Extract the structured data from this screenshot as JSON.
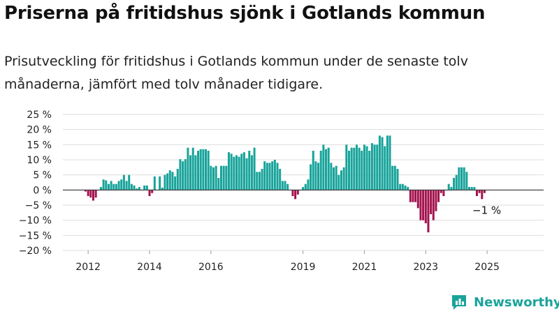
{
  "header": {
    "title": "Priserna på fritidshus sjönk i Gotlands kommun",
    "subtitle": "Prisutveckling för fritidshus i Gotlands kommun under de senaste tolv månaderna, jämfört med tolv månader tidigare."
  },
  "brand": {
    "name": "Newsworthy",
    "icon": "newsworthy-logo-icon"
  },
  "colors": {
    "positive": "#17a39a",
    "negative": "#a3124e",
    "grid": "#dddddd",
    "axis": "#333333"
  },
  "chart_data": {
    "type": "bar",
    "ylim": [
      -20,
      25
    ],
    "yticks": [
      "25 %",
      "20 %",
      "15 %",
      "10 %",
      "5 %",
      "0 %",
      "−5 %",
      "−10 %",
      "−15 %",
      "−20 %"
    ],
    "xticks": [
      "2012",
      "2014",
      "2016",
      "2019",
      "2021",
      "2023",
      "2025"
    ],
    "grid": true,
    "annotation": "−1 %",
    "x_start": "2011-12",
    "series": [
      {
        "values": [
          -0.5,
          -2,
          -2.5,
          -3.5,
          -2.5,
          0,
          1,
          3.5,
          3.2,
          2,
          3,
          2,
          2,
          3,
          3.5,
          5,
          3,
          5,
          2,
          1.5,
          0.5,
          1,
          0,
          1.5,
          1.5,
          -2,
          -1,
          4.5,
          0,
          4.5,
          0.8,
          5,
          5.5,
          6.5,
          6,
          4.5,
          7,
          10.2,
          9.5,
          10.2,
          14,
          11.5,
          14,
          11.5,
          13,
          13.5,
          13.5,
          13.5,
          13,
          8,
          7.5,
          8,
          4,
          8,
          8,
          8,
          12.5,
          12,
          11,
          11.5,
          11,
          12,
          12.5,
          10.5,
          13,
          11.5,
          14,
          6,
          6,
          7,
          9.5,
          9,
          9,
          9.5,
          10,
          9,
          7,
          3,
          3,
          2,
          0,
          -2,
          -3,
          -1.5,
          0,
          1,
          2,
          3.5,
          8.5,
          13,
          9.5,
          9,
          13,
          15,
          13.5,
          14,
          9,
          7.5,
          8,
          5,
          6.5,
          7.5,
          15,
          13,
          14,
          14,
          15,
          14,
          13,
          15,
          14.5,
          13,
          15.5,
          15,
          15,
          18,
          17.5,
          14.5,
          18,
          18,
          8,
          8,
          7,
          2,
          2,
          1.5,
          1,
          -4,
          -4,
          -4,
          -6,
          -10,
          -10,
          -11,
          -14,
          -8,
          -10,
          -7,
          -4,
          -1,
          -2,
          0,
          2,
          1,
          4,
          5,
          7.5,
          7.5,
          7.5,
          6,
          1,
          1,
          1,
          -2,
          -1,
          -3,
          -1
        ]
      }
    ]
  }
}
